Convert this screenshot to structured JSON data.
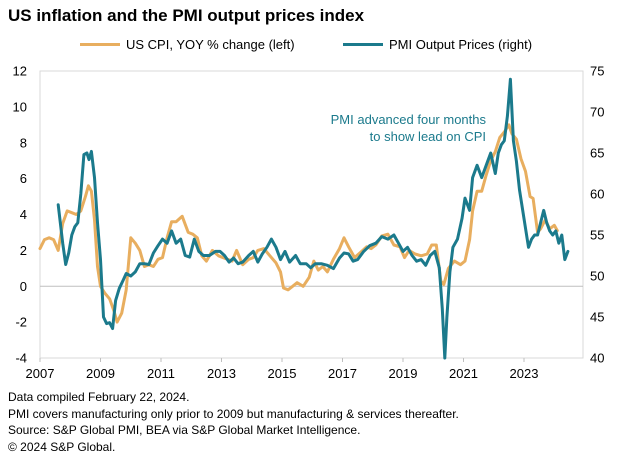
{
  "title": "US inflation and the PMI output prices index",
  "footnotes": [
    "Data compiled February 22, 2024.",
    "PMI covers manufacturing only prior to 2009 but manufacturing & services thereafter.",
    "Source: S&P Global PMI, BEA via S&P Global Market Intelligence.",
    "© 2024 S&P Global."
  ],
  "colors": {
    "cpi": "#E8AE5F",
    "pmi": "#1B7A8C",
    "annotation": "#1B7A8C"
  },
  "chart_data": {
    "type": "line",
    "title": "US inflation and the PMI output prices index",
    "annotation": [
      "PMI advanced four months",
      "to show lead on CPI"
    ],
    "x_range": [
      2007,
      2024.95
    ],
    "x_ticks": [
      "2007",
      "2009",
      "2011",
      "2013",
      "2015",
      "2017",
      "2019",
      "2021",
      "2023"
    ],
    "y_left": {
      "label": "US CPI, YOY % change",
      "range": [
        -4,
        12
      ],
      "ticks": [
        "-4",
        "-2",
        "0",
        "2",
        "4",
        "6",
        "8",
        "10",
        "12"
      ]
    },
    "y_right": {
      "label": "PMI Output Prices",
      "range": [
        40,
        75
      ],
      "ticks": [
        "40",
        "45",
        "50",
        "55",
        "60",
        "65",
        "70",
        "75"
      ]
    },
    "series": [
      {
        "name": "US CPI, YOY % change (left)",
        "axis": "left",
        "points": [
          [
            2007.0,
            2.1
          ],
          [
            2007.15,
            2.6
          ],
          [
            2007.3,
            2.7
          ],
          [
            2007.45,
            2.6
          ],
          [
            2007.6,
            2.0
          ],
          [
            2007.75,
            3.5
          ],
          [
            2007.9,
            4.2
          ],
          [
            2008.05,
            4.1
          ],
          [
            2008.2,
            4.0
          ],
          [
            2008.35,
            4.2
          ],
          [
            2008.5,
            5.0
          ],
          [
            2008.6,
            5.6
          ],
          [
            2008.7,
            5.3
          ],
          [
            2008.8,
            3.7
          ],
          [
            2008.9,
            1.1
          ],
          [
            2009.0,
            0.0
          ],
          [
            2009.15,
            -0.4
          ],
          [
            2009.3,
            -0.7
          ],
          [
            2009.45,
            -1.4
          ],
          [
            2009.55,
            -2.0
          ],
          [
            2009.7,
            -1.5
          ],
          [
            2009.85,
            -0.2
          ],
          [
            2010.0,
            2.7
          ],
          [
            2010.15,
            2.4
          ],
          [
            2010.3,
            2.0
          ],
          [
            2010.45,
            1.1
          ],
          [
            2010.6,
            1.2
          ],
          [
            2010.75,
            1.1
          ],
          [
            2010.9,
            1.5
          ],
          [
            2011.05,
            1.6
          ],
          [
            2011.2,
            2.7
          ],
          [
            2011.35,
            3.6
          ],
          [
            2011.5,
            3.6
          ],
          [
            2011.7,
            3.9
          ],
          [
            2011.9,
            3.0
          ],
          [
            2012.05,
            2.9
          ],
          [
            2012.2,
            2.7
          ],
          [
            2012.35,
            1.7
          ],
          [
            2012.5,
            1.4
          ],
          [
            2012.7,
            2.0
          ],
          [
            2012.9,
            1.7
          ],
          [
            2013.05,
            1.6
          ],
          [
            2013.2,
            1.5
          ],
          [
            2013.35,
            1.4
          ],
          [
            2013.5,
            2.0
          ],
          [
            2013.7,
            1.2
          ],
          [
            2013.9,
            1.5
          ],
          [
            2014.05,
            1.6
          ],
          [
            2014.2,
            2.0
          ],
          [
            2014.4,
            2.1
          ],
          [
            2014.6,
            1.7
          ],
          [
            2014.8,
            1.3
          ],
          [
            2014.95,
            0.8
          ],
          [
            2015.05,
            -0.1
          ],
          [
            2015.2,
            -0.2
          ],
          [
            2015.35,
            0.0
          ],
          [
            2015.5,
            0.2
          ],
          [
            2015.7,
            0.0
          ],
          [
            2015.9,
            0.5
          ],
          [
            2016.05,
            1.4
          ],
          [
            2016.2,
            0.9
          ],
          [
            2016.35,
            1.1
          ],
          [
            2016.5,
            0.8
          ],
          [
            2016.7,
            1.5
          ],
          [
            2016.9,
            2.1
          ],
          [
            2017.05,
            2.7
          ],
          [
            2017.2,
            2.2
          ],
          [
            2017.4,
            1.6
          ],
          [
            2017.6,
            1.9
          ],
          [
            2017.8,
            2.2
          ],
          [
            2017.95,
            2.1
          ],
          [
            2018.1,
            2.3
          ],
          [
            2018.3,
            2.8
          ],
          [
            2018.5,
            2.9
          ],
          [
            2018.7,
            2.3
          ],
          [
            2018.9,
            2.2
          ],
          [
            2019.05,
            1.6
          ],
          [
            2019.2,
            2.0
          ],
          [
            2019.4,
            1.8
          ],
          [
            2019.6,
            1.7
          ],
          [
            2019.8,
            1.8
          ],
          [
            2019.95,
            2.3
          ],
          [
            2020.1,
            2.3
          ],
          [
            2020.25,
            0.3
          ],
          [
            2020.35,
            0.1
          ],
          [
            2020.5,
            1.0
          ],
          [
            2020.7,
            1.4
          ],
          [
            2020.9,
            1.2
          ],
          [
            2021.05,
            1.4
          ],
          [
            2021.2,
            2.6
          ],
          [
            2021.3,
            4.2
          ],
          [
            2021.45,
            5.3
          ],
          [
            2021.6,
            5.3
          ],
          [
            2021.75,
            6.2
          ],
          [
            2021.9,
            7.0
          ],
          [
            2022.05,
            7.5
          ],
          [
            2022.2,
            8.3
          ],
          [
            2022.35,
            8.6
          ],
          [
            2022.5,
            9.0
          ],
          [
            2022.6,
            8.5
          ],
          [
            2022.75,
            8.2
          ],
          [
            2022.9,
            7.1
          ],
          [
            2023.05,
            6.4
          ],
          [
            2023.2,
            5.0
          ],
          [
            2023.3,
            4.9
          ],
          [
            2023.45,
            3.0
          ],
          [
            2023.55,
            3.2
          ],
          [
            2023.7,
            3.7
          ],
          [
            2023.85,
            3.2
          ],
          [
            2024.0,
            3.4
          ],
          [
            2024.1,
            3.1
          ]
        ]
      },
      {
        "name": "PMI Output Prices (right)",
        "axis": "right",
        "points": [
          [
            2007.6,
            58.7
          ],
          [
            2007.75,
            54.0
          ],
          [
            2007.85,
            51.4
          ],
          [
            2007.95,
            52.8
          ],
          [
            2008.05,
            55.0
          ],
          [
            2008.15,
            56.0
          ],
          [
            2008.25,
            56.5
          ],
          [
            2008.35,
            60.0
          ],
          [
            2008.45,
            64.8
          ],
          [
            2008.55,
            65.0
          ],
          [
            2008.62,
            64.2
          ],
          [
            2008.7,
            65.2
          ],
          [
            2008.8,
            62.0
          ],
          [
            2008.9,
            56.5
          ],
          [
            2009.0,
            52.0
          ],
          [
            2009.1,
            45.0
          ],
          [
            2009.2,
            44.2
          ],
          [
            2009.3,
            44.3
          ],
          [
            2009.4,
            43.6
          ],
          [
            2009.5,
            47.0
          ],
          [
            2009.62,
            48.5
          ],
          [
            2009.75,
            49.5
          ],
          [
            2009.85,
            50.3
          ],
          [
            2010.0,
            50.0
          ],
          [
            2010.15,
            50.5
          ],
          [
            2010.3,
            51.5
          ],
          [
            2010.45,
            51.5
          ],
          [
            2010.6,
            51.4
          ],
          [
            2010.75,
            52.8
          ],
          [
            2010.9,
            53.7
          ],
          [
            2011.05,
            54.5
          ],
          [
            2011.2,
            54.0
          ],
          [
            2011.35,
            55.5
          ],
          [
            2011.5,
            54.0
          ],
          [
            2011.65,
            54.5
          ],
          [
            2011.8,
            52.5
          ],
          [
            2011.95,
            52.3
          ],
          [
            2012.1,
            54.5
          ],
          [
            2012.25,
            53.0
          ],
          [
            2012.4,
            52.5
          ],
          [
            2012.6,
            52.5
          ],
          [
            2012.8,
            53.0
          ],
          [
            2012.95,
            53.0
          ],
          [
            2013.1,
            52.5
          ],
          [
            2013.25,
            51.7
          ],
          [
            2013.4,
            52.2
          ],
          [
            2013.55,
            51.5
          ],
          [
            2013.7,
            51.7
          ],
          [
            2013.9,
            52.5
          ],
          [
            2014.05,
            53.0
          ],
          [
            2014.2,
            51.7
          ],
          [
            2014.35,
            52.7
          ],
          [
            2014.5,
            53.5
          ],
          [
            2014.65,
            54.5
          ],
          [
            2014.8,
            53.5
          ],
          [
            2014.95,
            52.0
          ],
          [
            2015.1,
            53.0
          ],
          [
            2015.25,
            51.7
          ],
          [
            2015.45,
            52.5
          ],
          [
            2015.6,
            51.5
          ],
          [
            2015.8,
            51.5
          ],
          [
            2015.95,
            51.0
          ],
          [
            2016.1,
            51.5
          ],
          [
            2016.3,
            51.5
          ],
          [
            2016.5,
            51.3
          ],
          [
            2016.7,
            50.9
          ],
          [
            2016.9,
            52.2
          ],
          [
            2017.05,
            52.8
          ],
          [
            2017.2,
            52.7
          ],
          [
            2017.35,
            51.8
          ],
          [
            2017.5,
            52.0
          ],
          [
            2017.7,
            53.0
          ],
          [
            2017.9,
            53.7
          ],
          [
            2018.1,
            54.0
          ],
          [
            2018.3,
            54.8
          ],
          [
            2018.5,
            54.5
          ],
          [
            2018.7,
            55.0
          ],
          [
            2018.85,
            54.0
          ],
          [
            2019.0,
            53.0
          ],
          [
            2019.15,
            53.5
          ],
          [
            2019.3,
            52.5
          ],
          [
            2019.45,
            51.8
          ],
          [
            2019.6,
            52.0
          ],
          [
            2019.75,
            51.3
          ],
          [
            2019.9,
            52.5
          ],
          [
            2020.05,
            53.0
          ],
          [
            2020.2,
            51.0
          ],
          [
            2020.3,
            46.0
          ],
          [
            2020.38,
            40.0
          ],
          [
            2020.45,
            45.0
          ],
          [
            2020.55,
            50.5
          ],
          [
            2020.65,
            53.5
          ],
          [
            2020.8,
            54.5
          ],
          [
            2020.95,
            57.0
          ],
          [
            2021.05,
            59.5
          ],
          [
            2021.2,
            58.0
          ],
          [
            2021.3,
            62.0
          ],
          [
            2021.45,
            63.5
          ],
          [
            2021.6,
            62.0
          ],
          [
            2021.75,
            63.5
          ],
          [
            2021.9,
            65.0
          ],
          [
            2022.05,
            62.5
          ],
          [
            2022.15,
            65.0
          ],
          [
            2022.25,
            66.0
          ],
          [
            2022.35,
            66.5
          ],
          [
            2022.45,
            69.5
          ],
          [
            2022.55,
            74.0
          ],
          [
            2022.65,
            66.5
          ],
          [
            2022.75,
            64.0
          ],
          [
            2022.85,
            60.5
          ],
          [
            2023.0,
            57.0
          ],
          [
            2023.15,
            53.5
          ],
          [
            2023.25,
            54.5
          ],
          [
            2023.35,
            55.0
          ],
          [
            2023.45,
            55.0
          ],
          [
            2023.55,
            56.5
          ],
          [
            2023.65,
            58.0
          ],
          [
            2023.75,
            56.5
          ],
          [
            2023.85,
            55.5
          ],
          [
            2023.95,
            55.0
          ],
          [
            2024.05,
            55.5
          ],
          [
            2024.15,
            54.0
          ],
          [
            2024.25,
            55.0
          ],
          [
            2024.35,
            52.0
          ],
          [
            2024.45,
            53.0
          ]
        ]
      }
    ]
  }
}
